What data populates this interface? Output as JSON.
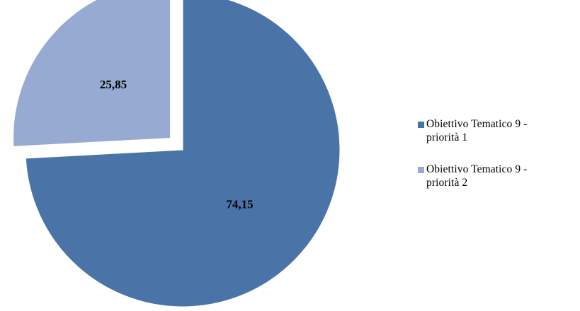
{
  "chart_data": {
    "type": "pie",
    "title": "",
    "categories": [
      "Obiettivo Tematico 9 - priorità 1",
      "Obiettivo Tematico 9 - priorità 2"
    ],
    "values": [
      74.15,
      25.85
    ],
    "value_labels": [
      "74,15",
      "25,85"
    ],
    "exploded": [
      false,
      true
    ],
    "colors": [
      "#4a74a8",
      "#97abd2"
    ],
    "legend": {
      "placement": "right",
      "entries": [
        {
          "lines": [
            "Obiettivo Tematico 9 -",
            "priorità 1"
          ],
          "color": "#4a74a8"
        },
        {
          "lines": [
            "Obiettivo Tematico 9 -",
            "priorità 2"
          ],
          "color": "#97abd2"
        }
      ]
    }
  }
}
